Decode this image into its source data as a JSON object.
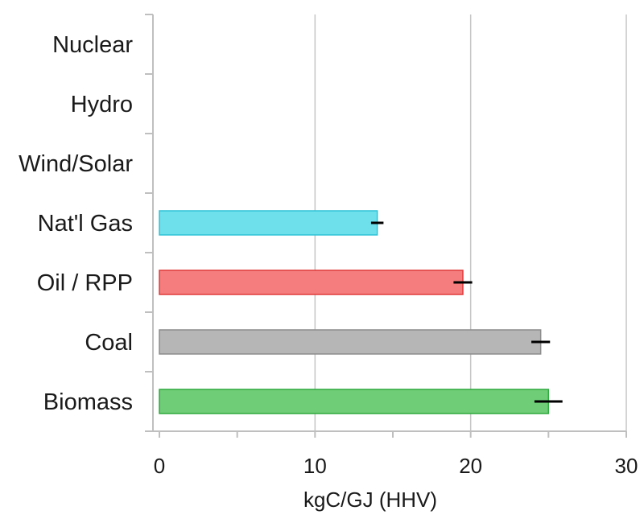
{
  "chart_data": {
    "type": "bar",
    "orientation": "horizontal",
    "categories": [
      "Nuclear",
      "Hydro",
      "Wind/Solar",
      "Nat'l Gas",
      "Oil / RPP",
      "Coal",
      "Biomass"
    ],
    "values": [
      0,
      0,
      0,
      14,
      19.5,
      24.5,
      25
    ],
    "error_bars": [
      0,
      0,
      0,
      0.4,
      0.6,
      0.6,
      0.9
    ],
    "colors": [
      "#ffffff",
      "#ffffff",
      "#ffffff",
      "#6ee0ec",
      "#f57d7d",
      "#b6b6b6",
      "#6fcc77"
    ],
    "edge_colors": [
      "#ffffff",
      "#ffffff",
      "#ffffff",
      "#2fc2d6",
      "#e03b3b",
      "#8c8c8c",
      "#2faa3f"
    ],
    "xlabel": "kgC/GJ (HHV)",
    "xlim": [
      0,
      30
    ],
    "xticks": [
      "0",
      "10",
      "20",
      "30"
    ],
    "grid": true
  }
}
